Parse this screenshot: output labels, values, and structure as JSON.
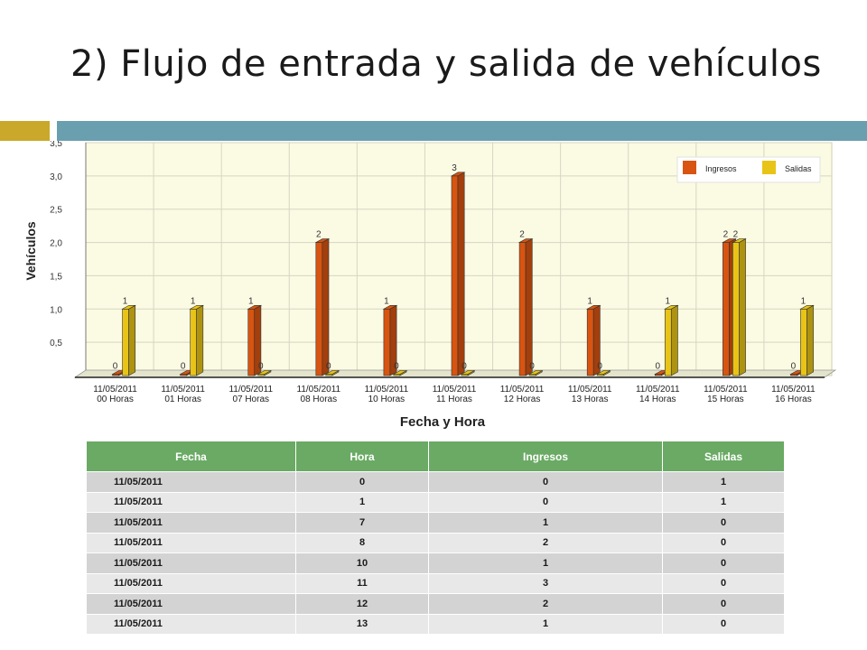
{
  "slide": {
    "title": "2) Flujo de entrada y salida de vehículos",
    "accent_colors": {
      "gold": "#c9a82a",
      "steel_blue": "#6a9fb0"
    }
  },
  "chart_data": {
    "type": "bar",
    "title": "",
    "xlabel": "Fecha y Hora",
    "ylabel": "Vehículos",
    "ylim": [
      0,
      3.5
    ],
    "yticks": [
      "0,5",
      "1,0",
      "1,5",
      "2,0",
      "2,5",
      "3,0",
      "3,5"
    ],
    "categories": [
      {
        "date": "11/05/2011",
        "hour": "00 Horas"
      },
      {
        "date": "11/05/2011",
        "hour": "01 Horas"
      },
      {
        "date": "11/05/2011",
        "hour": "07 Horas"
      },
      {
        "date": "11/05/2011",
        "hour": "08 Horas"
      },
      {
        "date": "11/05/2011",
        "hour": "10 Horas"
      },
      {
        "date": "11/05/2011",
        "hour": "11 Horas"
      },
      {
        "date": "11/05/2011",
        "hour": "12 Horas"
      },
      {
        "date": "11/05/2011",
        "hour": "13 Horas"
      },
      {
        "date": "11/05/2011",
        "hour": "14 Horas"
      },
      {
        "date": "11/05/2011",
        "hour": "15 Horas"
      },
      {
        "date": "11/05/2011",
        "hour": "16 Horas"
      }
    ],
    "series": [
      {
        "name": "Ingresos",
        "color": "#d85410",
        "values": [
          0,
          0,
          1,
          2,
          1,
          3,
          2,
          1,
          0,
          2,
          0
        ]
      },
      {
        "name": "Salidas",
        "color": "#e8c417",
        "values": [
          1,
          1,
          0,
          0,
          0,
          0,
          0,
          0,
          1,
          2,
          1
        ]
      }
    ],
    "legend_position": "top-right",
    "grid": true,
    "background": "#fbfbe4"
  },
  "table": {
    "headers": [
      "Fecha",
      "Hora",
      "Ingresos",
      "Salidas"
    ],
    "rows": [
      [
        "11/05/2011",
        "0",
        "0",
        "1"
      ],
      [
        "11/05/2011",
        "1",
        "0",
        "1"
      ],
      [
        "11/05/2011",
        "7",
        "1",
        "0"
      ],
      [
        "11/05/2011",
        "8",
        "2",
        "0"
      ],
      [
        "11/05/2011",
        "10",
        "1",
        "0"
      ],
      [
        "11/05/2011",
        "11",
        "3",
        "0"
      ],
      [
        "11/05/2011",
        "12",
        "2",
        "0"
      ],
      [
        "11/05/2011",
        "13",
        "1",
        "0"
      ]
    ]
  }
}
